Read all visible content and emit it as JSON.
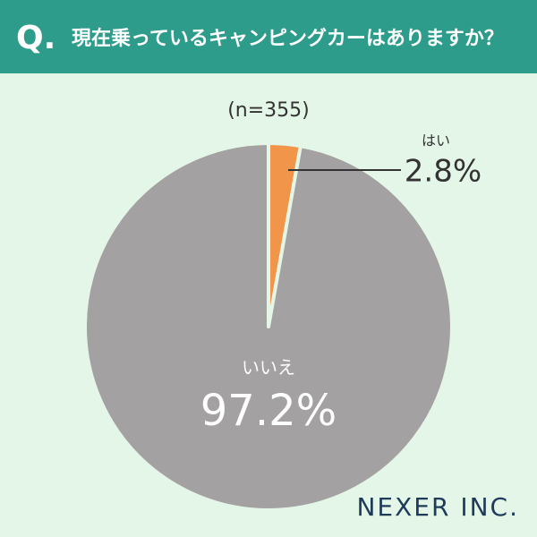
{
  "badge": "Q.",
  "brand": "NEXER INC.",
  "chart_data": {
    "type": "pie",
    "title": "現在乗っているキャンピングカーはありますか？",
    "subtitle": "(n=355)",
    "categories": [
      "はい",
      "いいえ"
    ],
    "values": [
      2.8,
      97.2
    ],
    "value_labels": [
      "2.8%",
      "97.2%"
    ],
    "colors": [
      "#f0954a",
      "#a3a1a1"
    ]
  }
}
